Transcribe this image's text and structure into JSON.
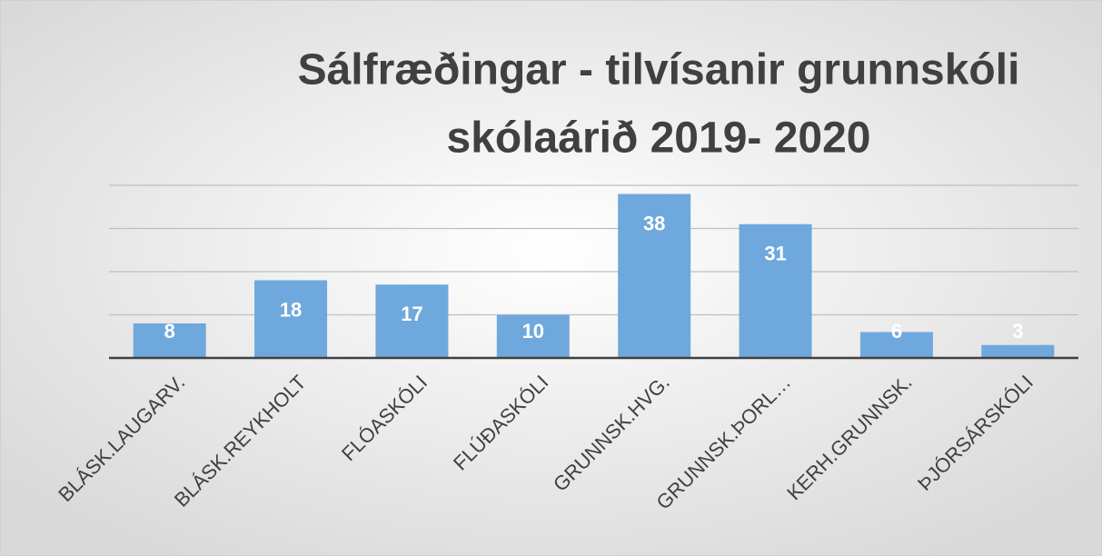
{
  "chart_data": {
    "type": "bar",
    "title_lines": [
      "Sálfræðingar - tilvísanir grunnskóli",
      "skólaárið 2019- 2020"
    ],
    "categories": [
      "BLÁSK.LAUGARV.",
      "BLÁSK.REYKHOLT",
      "FLÓASKÓLI",
      "FLÚÐASKÓLI",
      "GRUNNSK.HVG.",
      "GRUNNSK.ÞORL…",
      "KERH.GRUNNSK.",
      "ÞJÓRSÁRSKÓLI"
    ],
    "values": [
      8,
      18,
      17,
      10,
      38,
      31,
      6,
      3
    ],
    "color": "#6fa8dc",
    "ylim": [
      0,
      40
    ],
    "yticks": [
      0,
      10,
      20,
      30,
      40
    ],
    "grid": true
  }
}
